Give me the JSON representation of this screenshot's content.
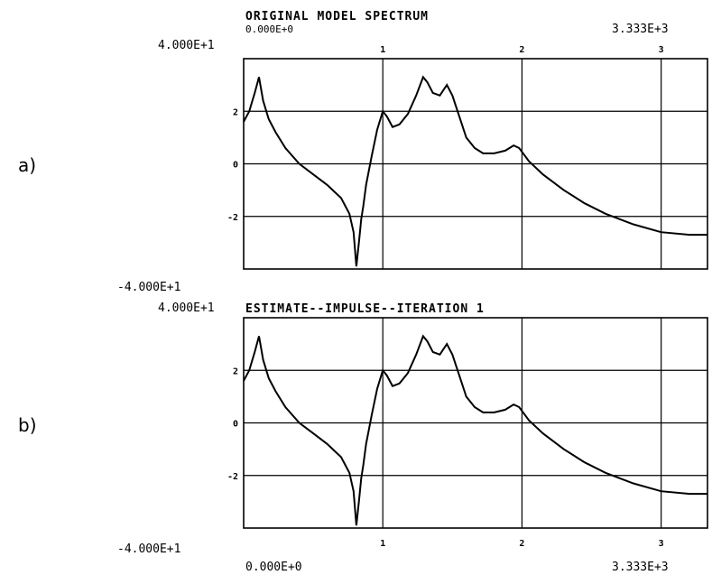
{
  "chart_data": [
    {
      "type": "line",
      "panel_label": "a)",
      "title": "ORIGINAL MODEL SPECTRUM",
      "x_start_label": "0.000E+0",
      "x_end_label": "3.333E+3",
      "y_top_label": "4.000E+1",
      "y_bottom_label": "-4.000E+1",
      "xlim": [
        0,
        3333
      ],
      "ylim": [
        -40,
        40
      ],
      "x_tick_labels": [
        "1",
        "2",
        "3"
      ],
      "y_tick_labels": [
        "2",
        "0",
        "-2"
      ],
      "x_tick_values": [
        1000,
        2000,
        3000
      ],
      "y_tick_values": [
        20,
        0,
        -20
      ],
      "grid": true,
      "series": [
        {
          "x": [
            0,
            40,
            80,
            110,
            140,
            180,
            230,
            300,
            400,
            500,
            600,
            700,
            760,
            790,
            810,
            830,
            845,
            860,
            880,
            920,
            960,
            1000,
            1030,
            1070,
            1120,
            1180,
            1240,
            1290,
            1320,
            1360,
            1410,
            1460,
            1500,
            1550,
            1600,
            1660,
            1720,
            1800,
            1880,
            1940,
            1980,
            2050,
            2150,
            2300,
            2450,
            2600,
            2800,
            3000,
            3200,
            3333
          ],
          "y": [
            16,
            20,
            27,
            33,
            24,
            17,
            12,
            6,
            0,
            -4,
            -8,
            -13,
            -19,
            -26,
            -39,
            -29,
            -21,
            -16,
            -8,
            3,
            13,
            20,
            18,
            14,
            15,
            19,
            26,
            33,
            31,
            27,
            26,
            30,
            26,
            18,
            10,
            6,
            4,
            4,
            5,
            7,
            6,
            1,
            -4,
            -10,
            -15,
            -19,
            -23,
            -26,
            -27,
            -27
          ]
        }
      ]
    },
    {
      "type": "line",
      "panel_label": "b)",
      "title": "ESTIMATE--IMPULSE--ITERATION 1",
      "x_start_label": "0.000E+0",
      "x_end_label": "3.333E+3",
      "y_top_label": "4.000E+1",
      "y_bottom_label": "-4.000E+1",
      "xlim": [
        0,
        3333
      ],
      "ylim": [
        -40,
        40
      ],
      "x_tick_labels": [
        "1",
        "2",
        "3"
      ],
      "y_tick_labels": [
        "2",
        "0",
        "-2"
      ],
      "x_tick_values": [
        1000,
        2000,
        3000
      ],
      "y_tick_values": [
        20,
        0,
        -20
      ],
      "grid": true,
      "series": [
        {
          "x": [
            0,
            40,
            80,
            110,
            140,
            180,
            230,
            300,
            400,
            500,
            600,
            700,
            760,
            790,
            810,
            830,
            845,
            860,
            880,
            920,
            960,
            1000,
            1030,
            1070,
            1120,
            1180,
            1240,
            1290,
            1320,
            1360,
            1410,
            1460,
            1500,
            1550,
            1600,
            1660,
            1720,
            1800,
            1880,
            1940,
            1980,
            2050,
            2150,
            2300,
            2450,
            2600,
            2800,
            3000,
            3200,
            3333
          ],
          "y": [
            16,
            20,
            27,
            33,
            24,
            17,
            12,
            6,
            0,
            -4,
            -8,
            -13,
            -19,
            -26,
            -39,
            -29,
            -21,
            -16,
            -8,
            3,
            13,
            20,
            18,
            14,
            15,
            19,
            26,
            33,
            31,
            27,
            26,
            30,
            26,
            18,
            10,
            6,
            4,
            4,
            5,
            7,
            6,
            1,
            -4,
            -10,
            -15,
            -19,
            -23,
            -26,
            -27,
            -27
          ]
        }
      ]
    }
  ]
}
